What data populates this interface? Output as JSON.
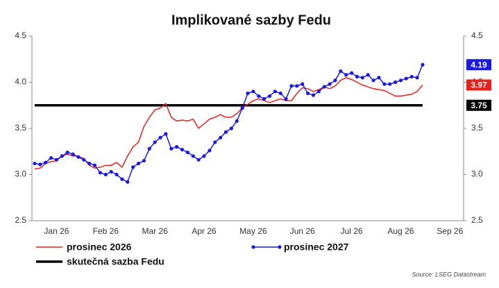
{
  "chart_data": {
    "type": "line",
    "title": "Implikované sazby Fedu",
    "source": "Source: LSEG Datastream",
    "categories": [
      null,
      null,
      null,
      null,
      "Jan 26",
      null,
      null,
      null,
      null,
      null,
      null,
      null,
      null,
      "Feb 26",
      null,
      null,
      null,
      null,
      null,
      null,
      null,
      null,
      "Mar 26",
      null,
      null,
      null,
      null,
      null,
      null,
      null,
      null,
      "Apr 26",
      null,
      null,
      null,
      null,
      null,
      null,
      null,
      null,
      "May 26",
      null,
      null,
      null,
      null,
      null,
      null,
      null,
      null,
      "Jun 26",
      null,
      null,
      null,
      null,
      null,
      null,
      null,
      null,
      "Jul 26",
      null,
      null,
      null,
      null,
      null,
      null,
      null,
      null,
      "Aug 26",
      null,
      null,
      null,
      null,
      null,
      null,
      null,
      null,
      "Sep 26",
      null,
      null
    ],
    "series": [
      {
        "name": "prosinec 2026",
        "color": "#e8201c",
        "marker": false,
        "values": [
          3.06,
          3.07,
          3.12,
          3.14,
          3.15,
          3.2,
          3.22,
          3.2,
          3.2,
          3.17,
          3.1,
          3.07,
          3.08,
          3.1,
          3.1,
          3.13,
          3.08,
          3.2,
          3.3,
          3.35,
          3.52,
          3.62,
          3.7,
          3.72,
          3.77,
          3.62,
          3.58,
          3.59,
          3.58,
          3.6,
          3.5,
          3.55,
          3.6,
          3.62,
          3.65,
          3.62,
          3.62,
          3.66,
          3.72,
          3.76,
          3.8,
          3.82,
          3.8,
          3.78,
          3.8,
          3.82,
          3.8,
          3.8,
          3.88,
          3.94,
          3.93,
          3.9,
          3.92,
          3.95,
          3.93,
          3.96,
          4.02,
          4.05,
          4.03,
          4.0,
          3.97,
          3.95,
          3.93,
          3.92,
          3.91,
          3.88,
          3.85,
          3.85,
          3.86,
          3.87,
          3.9,
          3.97,
          null,
          null,
          null,
          null,
          null,
          null,
          null
        ]
      },
      {
        "name": "prosinec 2027",
        "color": "#1a1adf",
        "marker": true,
        "values": [
          3.12,
          3.11,
          3.13,
          3.18,
          3.16,
          3.2,
          3.24,
          3.22,
          3.19,
          3.16,
          3.12,
          3.1,
          3.02,
          3.0,
          3.03,
          3.0,
          2.95,
          2.92,
          3.08,
          3.12,
          3.15,
          3.28,
          3.35,
          3.4,
          3.44,
          3.28,
          3.3,
          3.27,
          3.24,
          3.2,
          3.16,
          3.2,
          3.26,
          3.35,
          3.4,
          3.46,
          3.5,
          3.58,
          3.72,
          3.88,
          3.9,
          3.85,
          3.82,
          3.85,
          3.9,
          3.88,
          3.82,
          3.96,
          3.96,
          3.98,
          3.88,
          3.86,
          3.9,
          3.95,
          3.98,
          4.02,
          4.12,
          4.08,
          4.1,
          4.06,
          4.05,
          4.08,
          4.02,
          4.05,
          3.98,
          3.98,
          4.0,
          4.02,
          4.04,
          4.06,
          4.05,
          4.19,
          null,
          null,
          null,
          null,
          null,
          null,
          null
        ]
      },
      {
        "name": "skutečná sazba Fedu",
        "color": "#000000",
        "marker": false,
        "values": [
          3.75,
          3.75,
          3.75,
          3.75,
          3.75,
          3.75,
          3.75,
          3.75,
          3.75,
          3.75,
          3.75,
          3.75,
          3.75,
          3.75,
          3.75,
          3.75,
          3.75,
          3.75,
          3.75,
          3.75,
          3.75,
          3.75,
          3.75,
          3.75,
          3.75,
          3.75,
          3.75,
          3.75,
          3.75,
          3.75,
          3.75,
          3.75,
          3.75,
          3.75,
          3.75,
          3.75,
          3.75,
          3.75,
          3.75,
          3.75,
          3.75,
          3.75,
          3.75,
          3.75,
          3.75,
          3.75,
          3.75,
          3.75,
          3.75,
          3.75,
          3.75,
          3.75,
          3.75,
          3.75,
          3.75,
          3.75,
          3.75,
          3.75,
          3.75,
          3.75,
          3.75,
          3.75,
          3.75,
          3.75,
          3.75,
          3.75,
          3.75,
          3.75,
          3.75,
          3.75,
          3.75,
          3.75,
          null,
          null,
          null,
          null,
          null,
          null,
          null
        ]
      }
    ],
    "ylim": [
      2.5,
      4.5
    ],
    "yticks": [
      {
        "value": 2.5,
        "label": "2.5"
      },
      {
        "value": 3,
        "label": "3.0"
      },
      {
        "value": 3.5,
        "label": "3.5"
      },
      {
        "value": 4,
        "label": "4.0"
      },
      {
        "value": 4.5,
        "label": "4.5"
      }
    ],
    "grid": false,
    "legend": "bottom"
  }
}
